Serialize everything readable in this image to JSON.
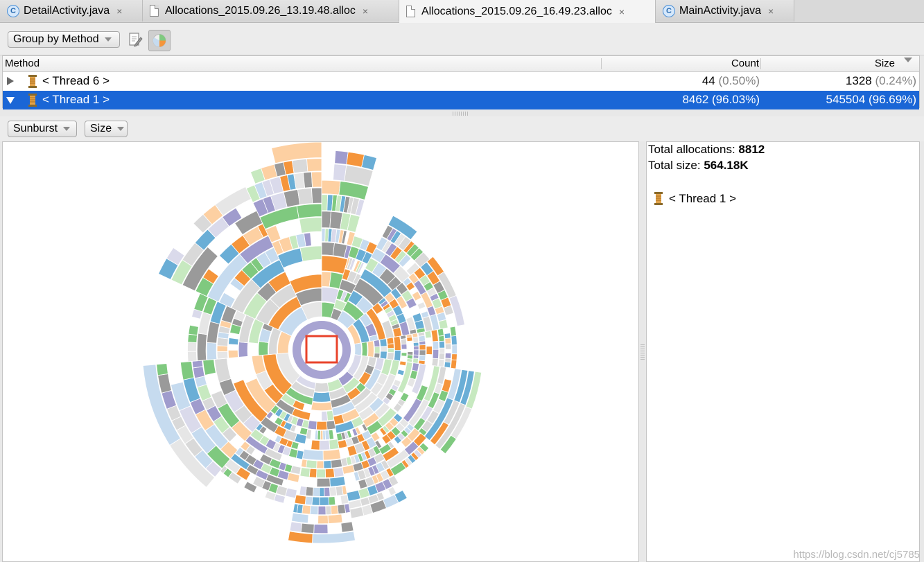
{
  "tabs": [
    {
      "label": "DetailActivity.java",
      "icon": "class-c-icon",
      "active": false
    },
    {
      "label": "Allocations_2015.09.26_13.19.48.alloc",
      "icon": "file-icon",
      "active": false
    },
    {
      "label": "Allocations_2015.09.26_16.49.23.alloc",
      "icon": "file-icon",
      "active": true
    },
    {
      "label": "MainActivity.java",
      "icon": "class-c-icon",
      "active": false
    }
  ],
  "tab_icon_letter": "C",
  "tab_close_glyph": "×",
  "toolbar": {
    "group_by": "Group by Method",
    "edit_icon": "edit-icon",
    "chart_toggle_icon": "pie-chart-icon"
  },
  "table": {
    "headers": {
      "method": "Method",
      "count": "Count",
      "size": "Size"
    },
    "rows": [
      {
        "name": "< Thread 6 >",
        "count": "44",
        "count_pct": "(0.50%)",
        "size": "1328",
        "size_pct": "(0.24%)",
        "expanded": false,
        "selected": false
      },
      {
        "name": "< Thread 1 >",
        "count": "8462",
        "count_pct": "(96.03%)",
        "size": "545504",
        "size_pct": "(96.69%)",
        "expanded": true,
        "selected": true
      }
    ]
  },
  "chart_controls": {
    "mode": "Sunburst",
    "metric": "Size"
  },
  "info": {
    "total_allocations_label": "Total allocations:",
    "total_allocations_value": "8812",
    "total_size_label": "Total size:",
    "total_size_value": "564.18K",
    "thread_label": "< Thread 1 >"
  },
  "watermark": "https://blog.csdn.net/cj5785",
  "palette": [
    "#6aaed6",
    "#f5953b",
    "#7fc97f",
    "#a09ccd",
    "#9a9a9a",
    "#d9d9d9",
    "#c6dbef",
    "#fdd0a2",
    "#c7e9c0",
    "#dadaeb",
    "#e6e6e6"
  ],
  "colors": {
    "selection": "#1a66d6",
    "center_ring": "#a8a4d2",
    "center_highlight": "#e8432b"
  }
}
